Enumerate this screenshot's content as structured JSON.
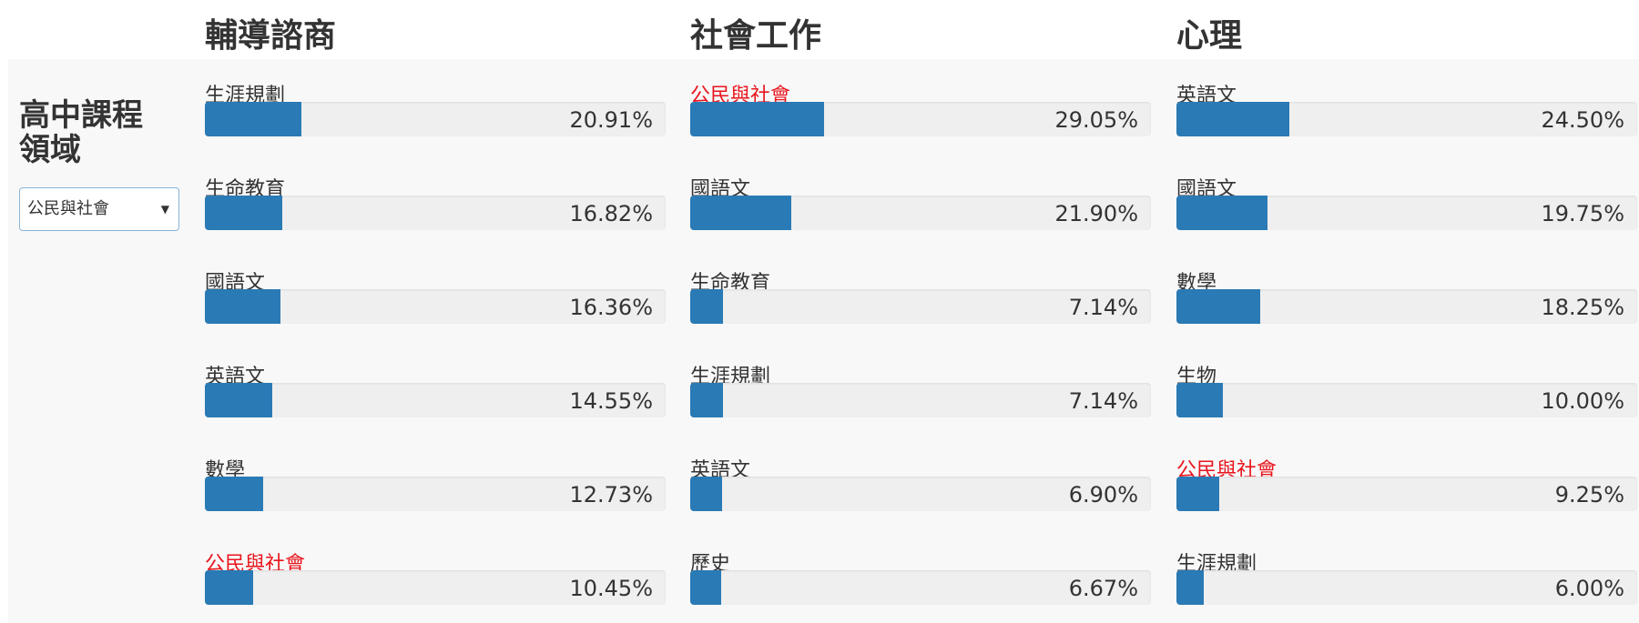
{
  "sidebar": {
    "label": "高中課程領域",
    "selected": "公民與社會"
  },
  "chart_data": [
    {
      "type": "bar",
      "title": "輔導諮商",
      "categories": [
        "生涯規劃",
        "生命教育",
        "國語文",
        "英語文",
        "數學",
        "公民與社會"
      ],
      "values": [
        20.91,
        16.82,
        16.36,
        14.55,
        12.73,
        10.45
      ],
      "value_labels": [
        "20.91%",
        "16.82%",
        "16.36%",
        "14.55%",
        "12.73%",
        "10.45%"
      ],
      "xlim": [
        0,
        100
      ],
      "color": "#2a7ab5",
      "highlight_color": "#e8141c"
    },
    {
      "type": "bar",
      "title": "社會工作",
      "categories": [
        "公民與社會",
        "國語文",
        "生命教育",
        "生涯規劃",
        "英語文",
        "歷史"
      ],
      "values": [
        29.05,
        21.9,
        7.14,
        7.14,
        6.9,
        6.67
      ],
      "value_labels": [
        "29.05%",
        "21.90%",
        "7.14%",
        "7.14%",
        "6.90%",
        "6.67%"
      ],
      "xlim": [
        0,
        100
      ],
      "color": "#2a7ab5",
      "highlight_color": "#e8141c"
    },
    {
      "type": "bar",
      "title": "心理",
      "categories": [
        "英語文",
        "國語文",
        "數學",
        "生物",
        "公民與社會",
        "生涯規劃"
      ],
      "values": [
        24.5,
        19.75,
        18.25,
        10.0,
        9.25,
        6.0
      ],
      "value_labels": [
        "24.50%",
        "19.75%",
        "18.25%",
        "10.00%",
        "9.25%",
        "6.00%"
      ],
      "xlim": [
        0,
        100
      ],
      "color": "#2a7ab5",
      "highlight_color": "#e8141c"
    }
  ]
}
